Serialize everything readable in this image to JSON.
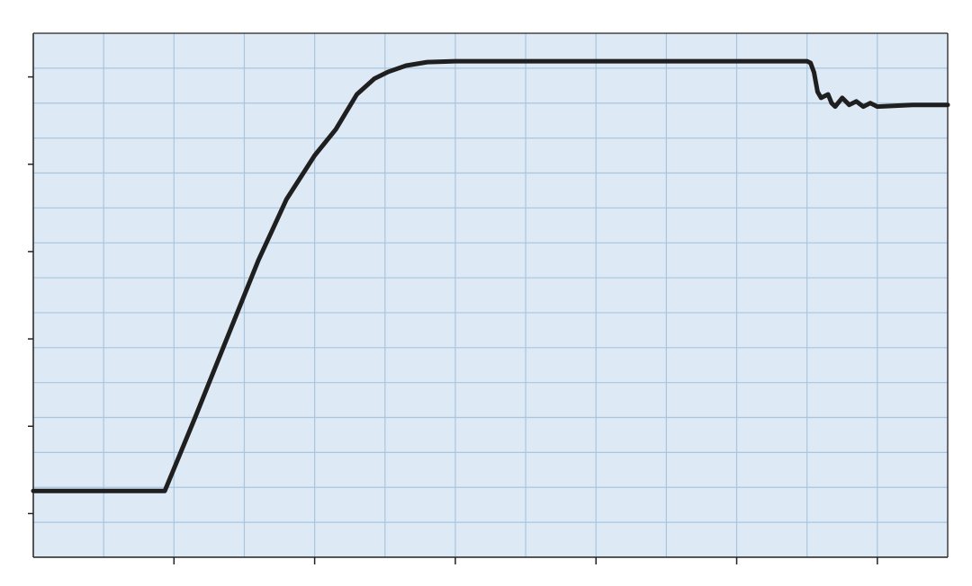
{
  "chart_data": {
    "type": "line",
    "title": "",
    "xlabel": "",
    "ylabel": "",
    "grid": true,
    "xlim": [
      0,
      13
    ],
    "ylim": [
      -0.5,
      5.5
    ],
    "x_major_ticks": [
      2,
      4,
      6,
      8,
      10,
      12
    ],
    "y_major_ticks": [
      0,
      1,
      2,
      3,
      4,
      5
    ],
    "x_minor_step": 1,
    "y_minor_step": 0.4,
    "colors": {
      "plot_background": "#dde9f5",
      "grid": "#a9c6de",
      "line": "#1f1f1f",
      "axis": "#222222"
    },
    "series": [
      {
        "x": [
          0,
          1.0,
          1.87,
          2.3,
          2.8,
          3.2,
          3.6,
          4.0,
          4.3,
          4.6,
          4.85,
          5.05,
          5.3,
          5.6,
          6.0,
          7.0,
          8.0,
          9.0,
          10.0,
          11.0,
          11.05,
          11.1,
          11.15,
          11.2,
          11.3,
          11.35,
          11.4,
          11.5,
          11.6,
          11.7,
          11.8,
          11.9,
          12.0,
          12.5,
          13.0
        ],
        "y": [
          0.26,
          0.26,
          0.26,
          1.1,
          2.1,
          2.9,
          3.6,
          4.1,
          4.4,
          4.8,
          4.98,
          5.06,
          5.13,
          5.17,
          5.18,
          5.18,
          5.18,
          5.18,
          5.18,
          5.18,
          5.16,
          5.05,
          4.83,
          4.76,
          4.8,
          4.7,
          4.66,
          4.76,
          4.68,
          4.72,
          4.66,
          4.7,
          4.66,
          4.68,
          4.68
        ]
      }
    ]
  }
}
